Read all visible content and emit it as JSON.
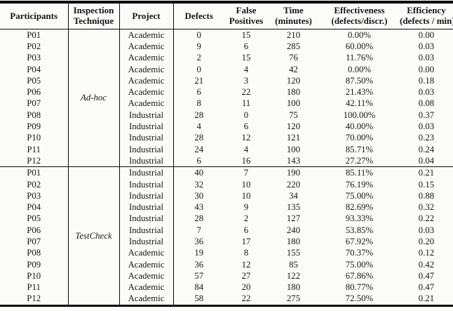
{
  "page": {
    "background_color": "#fbfbfa",
    "text_color": "#161616",
    "rule_color": "#0a0a0a"
  },
  "table": {
    "headers": [
      {
        "id": "participants",
        "label": "Participants"
      },
      {
        "id": "technique",
        "label": "Inspection\nTechnique"
      },
      {
        "id": "project",
        "label": "Project"
      },
      {
        "id": "defects",
        "label": "Defects"
      },
      {
        "id": "false_positives",
        "label": "False\nPositives"
      },
      {
        "id": "time",
        "label": "Time\n(minutes)"
      },
      {
        "id": "effectiveness",
        "label": "Effectiveness\n(defects/discr.)"
      },
      {
        "id": "efficiency",
        "label": "Efficiency\n(defects / min)"
      }
    ],
    "sections": [
      {
        "technique": "Ad-hoc",
        "rows": [
          {
            "participant": "P01",
            "project": "Academic",
            "defects": "0",
            "false_positives": "15",
            "time": "210",
            "effectiveness": "0.00%",
            "efficiency": "0.00"
          },
          {
            "participant": "P02",
            "project": "Academic",
            "defects": "9",
            "false_positives": "6",
            "time": "285",
            "effectiveness": "60.00%",
            "efficiency": "0.03"
          },
          {
            "participant": "P03",
            "project": "Academic",
            "defects": "2",
            "false_positives": "15",
            "time": "76",
            "effectiveness": "11.76%",
            "efficiency": "0.03"
          },
          {
            "participant": "P04",
            "project": "Academic",
            "defects": "0",
            "false_positives": "4",
            "time": "42",
            "effectiveness": "0.00%",
            "efficiency": "0.00"
          },
          {
            "participant": "P05",
            "project": "Academic",
            "defects": "21",
            "false_positives": "3",
            "time": "120",
            "effectiveness": "87.50%",
            "efficiency": "0.18"
          },
          {
            "participant": "P06",
            "project": "Academic",
            "defects": "6",
            "false_positives": "22",
            "time": "180",
            "effectiveness": "21.43%",
            "efficiency": "0.03"
          },
          {
            "participant": "P07",
            "project": "Academic",
            "defects": "8",
            "false_positives": "11",
            "time": "100",
            "effectiveness": "42.11%",
            "efficiency": "0.08"
          },
          {
            "participant": "P08",
            "project": "Industrial",
            "defects": "28",
            "false_positives": "0",
            "time": "75",
            "effectiveness": "100.00%",
            "efficiency": "0.37"
          },
          {
            "participant": "P09",
            "project": "Industrial",
            "defects": "4",
            "false_positives": "6",
            "time": "120",
            "effectiveness": "40.00%",
            "efficiency": "0.03"
          },
          {
            "participant": "P10",
            "project": "Industrial",
            "defects": "28",
            "false_positives": "12",
            "time": "121",
            "effectiveness": "70.00%",
            "efficiency": "0.23"
          },
          {
            "participant": "P11",
            "project": "Industrial",
            "defects": "24",
            "false_positives": "4",
            "time": "100",
            "effectiveness": "85.71%",
            "efficiency": "0.24"
          },
          {
            "participant": "P12",
            "project": "Industrial",
            "defects": "6",
            "false_positives": "16",
            "time": "143",
            "effectiveness": "27.27%",
            "efficiency": "0.04"
          }
        ]
      },
      {
        "technique": "TestCheck",
        "rows": [
          {
            "participant": "P01",
            "project": "Industrial",
            "defects": "40",
            "false_positives": "7",
            "time": "190",
            "effectiveness": "85.11%",
            "efficiency": "0.21"
          },
          {
            "participant": "P02",
            "project": "Industrial",
            "defects": "32",
            "false_positives": "10",
            "time": "220",
            "effectiveness": "76.19%",
            "efficiency": "0.15"
          },
          {
            "participant": "P03",
            "project": "Industrial",
            "defects": "30",
            "false_positives": "10",
            "time": "34",
            "effectiveness": "75.00%",
            "efficiency": "0.88"
          },
          {
            "participant": "P04",
            "project": "Industrial",
            "defects": "43",
            "false_positives": "9",
            "time": "135",
            "effectiveness": "82.69%",
            "efficiency": "0.32"
          },
          {
            "participant": "P05",
            "project": "Industrial",
            "defects": "28",
            "false_positives": "2",
            "time": "127",
            "effectiveness": "93.33%",
            "efficiency": "0.22"
          },
          {
            "participant": "P06",
            "project": "Industrial",
            "defects": "7",
            "false_positives": "6",
            "time": "240",
            "effectiveness": "53.85%",
            "efficiency": "0.03"
          },
          {
            "participant": "P07",
            "project": "Industrial",
            "defects": "36",
            "false_positives": "17",
            "time": "180",
            "effectiveness": "67.92%",
            "efficiency": "0.20"
          },
          {
            "participant": "P08",
            "project": "Academic",
            "defects": "19",
            "false_positives": "8",
            "time": "155",
            "effectiveness": "70.37%",
            "efficiency": "0.12"
          },
          {
            "participant": "P09",
            "project": "Academic",
            "defects": "36",
            "false_positives": "12",
            "time": "85",
            "effectiveness": "75.00%",
            "efficiency": "0.42"
          },
          {
            "participant": "P10",
            "project": "Academic",
            "defects": "57",
            "false_positives": "27",
            "time": "122",
            "effectiveness": "67.86%",
            "efficiency": "0.47"
          },
          {
            "participant": "P11",
            "project": "Academic",
            "defects": "84",
            "false_positives": "20",
            "time": "180",
            "effectiveness": "80.77%",
            "efficiency": "0.47"
          },
          {
            "participant": "P12",
            "project": "Academic",
            "defects": "58",
            "false_positives": "22",
            "time": "275",
            "effectiveness": "72.50%",
            "efficiency": "0.21"
          }
        ]
      }
    ]
  }
}
